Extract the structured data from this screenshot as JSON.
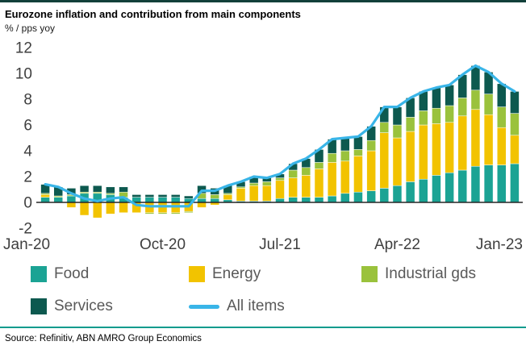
{
  "header": {
    "title": "Eurozone inflation and contribution from main components",
    "subtitle": "% / pps yoy"
  },
  "footer": {
    "source": "Source: Refinitiv, ABN AMRO Group Economics"
  },
  "colors": {
    "top_rule": "#12403a",
    "bottom_rule": "#0b9b8d",
    "axis_text": "#3f3f3f",
    "zero_line": "#262626",
    "legend_text": "#595959"
  },
  "chart_data": {
    "type": "bar",
    "stacked": true,
    "title": "Eurozone inflation and contribution from main components",
    "subtitle": "% / pps yoy",
    "ylim": [
      -2,
      12
    ],
    "yticks": [
      12,
      10,
      8,
      6,
      4,
      2,
      0,
      -2
    ],
    "grid": false,
    "legend_position": "bottom",
    "x": [
      "Jan-20",
      "Feb-20",
      "Mar-20",
      "Apr-20",
      "May-20",
      "Jun-20",
      "Jul-20",
      "Aug-20",
      "Sep-20",
      "Oct-20",
      "Nov-20",
      "Dec-20",
      "Jan-21",
      "Feb-21",
      "Mar-21",
      "Apr-21",
      "May-21",
      "Jun-21",
      "Jul-21",
      "Aug-21",
      "Sep-21",
      "Oct-21",
      "Nov-21",
      "Dec-21",
      "Jan-22",
      "Feb-22",
      "Mar-22",
      "Apr-22",
      "May-22",
      "Jun-22",
      "Jul-22",
      "Aug-22",
      "Sep-22",
      "Oct-22",
      "Nov-22",
      "Dec-22",
      "Jan-23"
    ],
    "xticks": [
      {
        "index": 0,
        "label": "Jan-20"
      },
      {
        "index": 9,
        "label": "Oct-20"
      },
      {
        "index": 18,
        "label": "Jul-21"
      },
      {
        "index": 27,
        "label": "Apr-22"
      },
      {
        "index": 36,
        "label": "Jan-23"
      }
    ],
    "series": [
      {
        "name": "Food",
        "color": "#1ba394",
        "values": [
          0.4,
          0.4,
          0.5,
          0.7,
          0.7,
          0.6,
          0.4,
          0.4,
          0.4,
          0.4,
          0.4,
          0.3,
          0.3,
          0.3,
          0.2,
          0.1,
          0.1,
          0.1,
          0.3,
          0.4,
          0.4,
          0.4,
          0.5,
          0.7,
          0.8,
          0.9,
          1.1,
          1.3,
          1.6,
          1.8,
          2.1,
          2.3,
          2.5,
          2.8,
          2.9,
          2.9,
          3.0
        ]
      },
      {
        "name": "Energy",
        "color": "#f2c300",
        "values": [
          0.2,
          0.0,
          -0.4,
          -1.0,
          -1.2,
          -0.9,
          -0.8,
          -0.8,
          -0.8,
          -0.8,
          -0.8,
          -0.7,
          -0.4,
          -0.2,
          0.4,
          1.0,
          1.2,
          1.2,
          1.4,
          1.5,
          1.7,
          2.2,
          2.6,
          2.5,
          2.8,
          3.1,
          4.3,
          3.7,
          3.9,
          4.2,
          4.0,
          3.9,
          4.2,
          4.4,
          3.9,
          2.9,
          2.2
        ]
      },
      {
        "name": "Industrial gds",
        "color": "#9ac23c",
        "values": [
          0.1,
          0.1,
          0.1,
          0.1,
          0.1,
          0.1,
          0.4,
          0.0,
          -0.1,
          -0.1,
          -0.1,
          -0.1,
          0.4,
          0.3,
          0.1,
          0.1,
          0.2,
          0.3,
          0.2,
          0.6,
          0.6,
          0.5,
          0.7,
          0.8,
          0.5,
          0.8,
          0.8,
          1.0,
          1.1,
          1.1,
          1.2,
          1.3,
          1.4,
          1.5,
          1.6,
          1.6,
          1.7
        ]
      },
      {
        "name": "Services",
        "color": "#0d594f",
        "values": [
          0.7,
          0.7,
          0.5,
          0.5,
          0.5,
          0.5,
          0.4,
          0.2,
          0.2,
          0.2,
          0.2,
          0.2,
          0.6,
          0.5,
          0.6,
          0.4,
          0.5,
          0.3,
          0.3,
          0.5,
          0.7,
          1.0,
          1.1,
          1.0,
          1.0,
          1.1,
          1.2,
          1.4,
          1.5,
          1.5,
          1.6,
          1.6,
          1.8,
          1.9,
          1.7,
          1.8,
          1.7
        ]
      }
    ],
    "line_series": {
      "name": "All items",
      "color": "#39b5e8",
      "values": [
        1.4,
        1.2,
        0.7,
        0.3,
        0.1,
        0.3,
        0.4,
        -0.2,
        -0.3,
        -0.3,
        -0.3,
        -0.3,
        0.9,
        0.9,
        1.3,
        1.6,
        2.0,
        1.9,
        2.2,
        3.0,
        3.4,
        4.1,
        4.9,
        5.0,
        5.1,
        5.9,
        7.4,
        7.4,
        8.1,
        8.6,
        8.9,
        9.1,
        9.9,
        10.6,
        10.1,
        9.2,
        8.6
      ]
    }
  }
}
